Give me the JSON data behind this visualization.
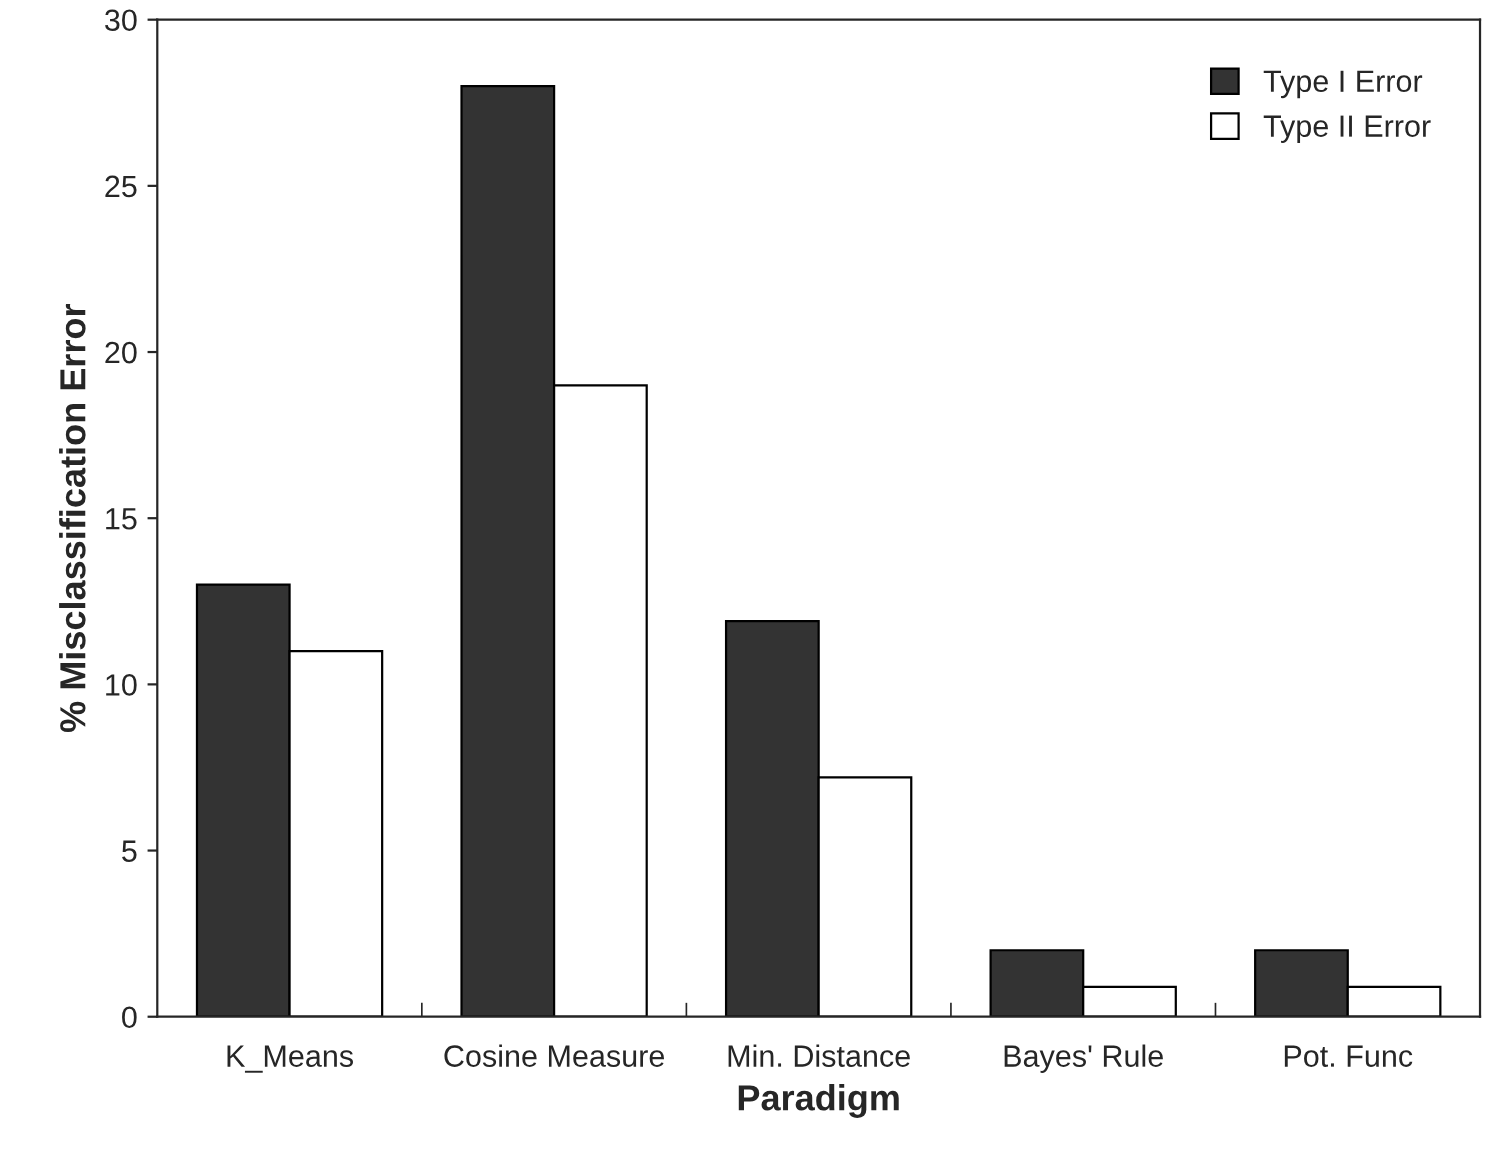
{
  "chart_data": {
    "type": "bar",
    "xlabel": "Paradigm",
    "ylabel": "% Misclassification Error",
    "categories": [
      "K_Means",
      "Cosine Measure",
      "Min. Distance",
      "Bayes' Rule",
      "Pot. Func"
    ],
    "series": [
      {
        "name": "Type I Error",
        "color": "#333333",
        "values": [
          13,
          28,
          11.9,
          2,
          2
        ]
      },
      {
        "name": "Type II Error",
        "color": "#ffffff",
        "values": [
          11,
          19,
          7.2,
          0.9,
          0.9
        ]
      }
    ],
    "ylim": [
      0,
      30
    ],
    "yticks": [
      0,
      5,
      10,
      15,
      20,
      25,
      30
    ],
    "grid": false,
    "legend": "top right"
  }
}
